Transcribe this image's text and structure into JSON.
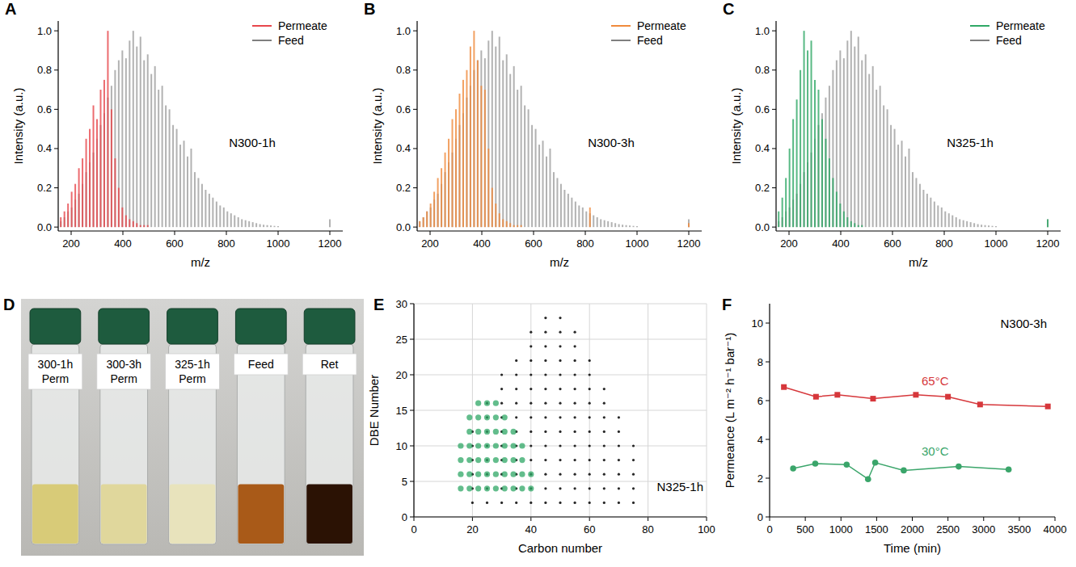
{
  "chart_data": [
    {
      "panel": "A",
      "type": "spectrum",
      "x_label": "m/z",
      "y_label": "Intensity (a.u.)",
      "annotation": "N300-1h",
      "legend": "top-right",
      "xlim": [
        150,
        1250
      ],
      "xticks": [
        200,
        400,
        600,
        800,
        1000,
        1200
      ],
      "ylim": [
        -0.02,
        1.05
      ],
      "yticks": [
        {
          "value": 0,
          "label": "0.0"
        },
        0.2,
        0.4,
        0.6,
        0.8,
        {
          "value": 1,
          "label": "1.0"
        }
      ],
      "x": [
        160,
        174,
        188,
        202,
        216,
        230,
        244,
        258,
        272,
        286,
        300,
        314,
        328,
        342,
        356,
        370,
        384,
        398,
        412,
        426,
        440,
        454,
        468,
        482,
        496,
        510,
        524,
        538,
        552,
        566,
        580,
        594,
        608,
        622,
        636,
        650,
        664,
        678,
        692,
        706,
        720,
        734,
        748,
        762,
        776,
        790,
        804,
        818,
        832,
        846,
        860,
        874,
        888,
        902,
        916,
        930,
        944,
        958,
        972,
        986,
        1000,
        1200
      ],
      "series": [
        {
          "name": "Permeate",
          "color": "#e8474c",
          "values": [
            0.05,
            0.08,
            0.12,
            0.18,
            0.22,
            0.3,
            0.35,
            0.45,
            0.5,
            0.62,
            0.55,
            0.7,
            0.75,
            1,
            0.6,
            0.35,
            0.2,
            0.1,
            0.06,
            0.04,
            0.03,
            0.02,
            0.01,
            0.01,
            0.01,
            0,
            0,
            0,
            0,
            0,
            0,
            0,
            0,
            0,
            0,
            0,
            0,
            0,
            0,
            0,
            0,
            0,
            0,
            0,
            0,
            0,
            0,
            0,
            0,
            0,
            0,
            0,
            0,
            0,
            0,
            0,
            0,
            0,
            0,
            0,
            0,
            0
          ]
        },
        {
          "name": "Feed",
          "color": "#7f7f7f",
          "values": [
            0.03,
            0.05,
            0.08,
            0.1,
            0.14,
            0.17,
            0.22,
            0.28,
            0.33,
            0.38,
            0.45,
            0.52,
            0.58,
            0.66,
            0.72,
            0.8,
            0.85,
            0.9,
            0.86,
            0.95,
            1,
            0.92,
            0.97,
            0.85,
            0.88,
            0.78,
            0.82,
            0.7,
            0.72,
            0.62,
            0.6,
            0.52,
            0.5,
            0.42,
            0.44,
            0.36,
            0.4,
            0.28,
            0.25,
            0.22,
            0.19,
            0.17,
            0.15,
            0.13,
            0.11,
            0.1,
            0.08,
            0.07,
            0.06,
            0.05,
            0.04,
            0.035,
            0.03,
            0.025,
            0.02,
            0.015,
            0.012,
            0.01,
            0.008,
            0.006,
            0.005,
            0.04
          ]
        }
      ]
    },
    {
      "panel": "B",
      "type": "spectrum",
      "x_label": "m/z",
      "y_label": "Intensity (a.u.)",
      "annotation": "N300-3h",
      "legend": "top-right",
      "xlim": [
        150,
        1250
      ],
      "xticks": [
        200,
        400,
        600,
        800,
        1000,
        1200
      ],
      "ylim": [
        -0.02,
        1.05
      ],
      "yticks": [
        {
          "value": 0,
          "label": "0.0"
        },
        0.2,
        0.4,
        0.6,
        0.8,
        {
          "value": 1,
          "label": "1.0"
        }
      ],
      "x": [
        160,
        174,
        188,
        202,
        216,
        230,
        244,
        258,
        272,
        286,
        300,
        314,
        328,
        342,
        356,
        370,
        384,
        398,
        412,
        426,
        440,
        454,
        468,
        482,
        496,
        510,
        524,
        538,
        552,
        566,
        580,
        594,
        608,
        622,
        636,
        650,
        664,
        678,
        692,
        706,
        720,
        734,
        748,
        762,
        776,
        790,
        804,
        818,
        832,
        846,
        860,
        874,
        888,
        902,
        916,
        930,
        944,
        958,
        972,
        986,
        1000,
        1200
      ],
      "series": [
        {
          "name": "Permeate",
          "color": "#f08a3c",
          "values": [
            0.03,
            0.05,
            0.08,
            0.12,
            0.18,
            0.25,
            0.3,
            0.38,
            0.45,
            0.55,
            0.6,
            0.68,
            0.75,
            0.8,
            0.92,
            1,
            0.85,
            0.72,
            0.7,
            0.4,
            0.2,
            0.12,
            0.07,
            0.04,
            0.03,
            0.02,
            0.01,
            0.01,
            0.01,
            0,
            0,
            0,
            0,
            0,
            0,
            0,
            0,
            0,
            0,
            0,
            0,
            0,
            0,
            0,
            0,
            0,
            0,
            0.1,
            0,
            0,
            0,
            0,
            0,
            0,
            0,
            0,
            0,
            0,
            0,
            0,
            0,
            0.02
          ]
        },
        {
          "name": "Feed",
          "color": "#7f7f7f",
          "values": [
            0.03,
            0.05,
            0.08,
            0.1,
            0.14,
            0.17,
            0.22,
            0.28,
            0.33,
            0.38,
            0.45,
            0.52,
            0.58,
            0.66,
            0.72,
            0.8,
            0.85,
            0.9,
            0.86,
            0.95,
            1,
            0.92,
            0.97,
            0.85,
            0.88,
            0.78,
            0.82,
            0.7,
            0.72,
            0.62,
            0.6,
            0.52,
            0.5,
            0.42,
            0.44,
            0.36,
            0.4,
            0.28,
            0.25,
            0.22,
            0.19,
            0.17,
            0.15,
            0.13,
            0.11,
            0.1,
            0.08,
            0.07,
            0.06,
            0.05,
            0.04,
            0.035,
            0.03,
            0.025,
            0.02,
            0.015,
            0.012,
            0.01,
            0.008,
            0.006,
            0.005,
            0.04
          ]
        }
      ]
    },
    {
      "panel": "C",
      "type": "spectrum",
      "x_label": "m/z",
      "y_label": "Intensity (a.u.)",
      "annotation": "N325-1h",
      "legend": "top-right",
      "xlim": [
        150,
        1250
      ],
      "xticks": [
        200,
        400,
        600,
        800,
        1000,
        1200
      ],
      "ylim": [
        -0.02,
        1.05
      ],
      "yticks": [
        {
          "value": 0,
          "label": "0.0"
        },
        0.2,
        0.4,
        0.6,
        0.8,
        {
          "value": 1,
          "label": "1.0"
        }
      ],
      "x": [
        160,
        174,
        188,
        202,
        216,
        230,
        244,
        258,
        272,
        286,
        300,
        314,
        328,
        342,
        356,
        370,
        384,
        398,
        412,
        426,
        440,
        454,
        468,
        482,
        496,
        510,
        524,
        538,
        552,
        566,
        580,
        594,
        608,
        622,
        636,
        650,
        664,
        678,
        692,
        706,
        720,
        734,
        748,
        762,
        776,
        790,
        804,
        818,
        832,
        846,
        860,
        874,
        888,
        902,
        916,
        930,
        944,
        958,
        972,
        986,
        1000,
        1200
      ],
      "series": [
        {
          "name": "Permeate",
          "color": "#2fa866",
          "values": [
            0.08,
            0.15,
            0.25,
            0.4,
            0.55,
            0.65,
            0.8,
            1,
            0.9,
            0.95,
            0.75,
            0.7,
            0.55,
            0.45,
            0.35,
            0.25,
            0.18,
            0.12,
            0.08,
            0.05,
            0.03,
            0.02,
            0.01,
            0.01,
            0,
            0,
            0,
            0,
            0,
            0,
            0,
            0,
            0,
            0,
            0,
            0,
            0,
            0,
            0,
            0,
            0,
            0,
            0,
            0,
            0,
            0,
            0,
            0,
            0,
            0,
            0,
            0,
            0,
            0,
            0,
            0,
            0,
            0,
            0,
            0,
            0,
            0.04
          ]
        },
        {
          "name": "Feed",
          "color": "#7f7f7f",
          "values": [
            0.03,
            0.05,
            0.08,
            0.1,
            0.14,
            0.17,
            0.22,
            0.28,
            0.33,
            0.38,
            0.45,
            0.52,
            0.58,
            0.66,
            0.72,
            0.8,
            0.85,
            0.9,
            0.86,
            0.95,
            1,
            0.92,
            0.97,
            0.85,
            0.88,
            0.78,
            0.82,
            0.7,
            0.72,
            0.62,
            0.6,
            0.52,
            0.5,
            0.42,
            0.44,
            0.36,
            0.4,
            0.28,
            0.25,
            0.22,
            0.19,
            0.17,
            0.15,
            0.13,
            0.11,
            0.1,
            0.08,
            0.07,
            0.06,
            0.05,
            0.04,
            0.035,
            0.03,
            0.025,
            0.02,
            0.015,
            0.012,
            0.01,
            0.008,
            0.006,
            0.005,
            0.04
          ]
        }
      ]
    },
    {
      "panel": "D",
      "type": "image",
      "labels": [
        [
          "300-1h",
          "Perm"
        ],
        [
          "300-3h",
          "Perm"
        ],
        [
          "325-1h",
          "Perm"
        ],
        [
          "Feed"
        ],
        [
          "Ret"
        ]
      ],
      "colors": [
        "#d8cb78",
        "#e0d79c",
        "#e8e3bc",
        "#a95a18",
        "#2b1204"
      ]
    },
    {
      "panel": "E",
      "type": "scatter",
      "x_label": "Carbon number",
      "y_label": "DBE Number",
      "annotation": "N325-1h",
      "grid": true,
      "xlim": [
        0,
        100
      ],
      "xticks": [
        0,
        20,
        40,
        60,
        80,
        100
      ],
      "ylim": [
        0,
        30
      ],
      "yticks": [
        0,
        5,
        10,
        15,
        20,
        25,
        30
      ],
      "series": [
        {
          "color": "#111111",
          "marker": "dot",
          "x": [
            20,
            25,
            30,
            35,
            40,
            45,
            50,
            55,
            60,
            65,
            70,
            75,
            20,
            25,
            30,
            35,
            40,
            45,
            50,
            55,
            60,
            65,
            70,
            75,
            20,
            25,
            30,
            35,
            40,
            45,
            50,
            55,
            60,
            65,
            70,
            75,
            20,
            25,
            30,
            35,
            40,
            45,
            50,
            55,
            60,
            65,
            70,
            75,
            20,
            25,
            30,
            35,
            40,
            45,
            50,
            55,
            60,
            65,
            70,
            75,
            20,
            25,
            30,
            35,
            40,
            45,
            50,
            55,
            60,
            65,
            70,
            25,
            30,
            35,
            40,
            45,
            50,
            55,
            60,
            65,
            70,
            25,
            30,
            35,
            40,
            45,
            50,
            55,
            60,
            65,
            30,
            35,
            40,
            45,
            50,
            55,
            60,
            65,
            30,
            35,
            40,
            45,
            50,
            55,
            60,
            35,
            40,
            45,
            50,
            55,
            60,
            40,
            45,
            50,
            55,
            40,
            45,
            50,
            55,
            45,
            50
          ],
          "values": [
            2,
            2,
            2,
            2,
            2,
            2,
            2,
            2,
            2,
            2,
            2,
            2,
            4,
            4,
            4,
            4,
            4,
            4,
            4,
            4,
            4,
            4,
            4,
            4,
            6,
            6,
            6,
            6,
            6,
            6,
            6,
            6,
            6,
            6,
            6,
            6,
            8,
            8,
            8,
            8,
            8,
            8,
            8,
            8,
            8,
            8,
            8,
            8,
            10,
            10,
            10,
            10,
            10,
            10,
            10,
            10,
            10,
            10,
            10,
            10,
            12,
            12,
            12,
            12,
            12,
            12,
            12,
            12,
            12,
            12,
            12,
            14,
            14,
            14,
            14,
            14,
            14,
            14,
            14,
            14,
            14,
            16,
            16,
            16,
            16,
            16,
            16,
            16,
            16,
            16,
            18,
            18,
            18,
            18,
            18,
            18,
            18,
            18,
            20,
            20,
            20,
            20,
            20,
            20,
            20,
            22,
            22,
            22,
            22,
            22,
            22,
            24,
            24,
            24,
            24,
            26,
            26,
            26,
            26,
            28,
            28
          ]
        },
        {
          "color": "#2fa866",
          "marker": "circle",
          "x": [
            16,
            19,
            22,
            25,
            28,
            31,
            34,
            37,
            40,
            16,
            19,
            22,
            25,
            28,
            31,
            34,
            37,
            40,
            16,
            19,
            22,
            25,
            28,
            31,
            34,
            37,
            16,
            19,
            22,
            25,
            28,
            31,
            34,
            37,
            19,
            22,
            25,
            28,
            31,
            34,
            19,
            22,
            25,
            28,
            31,
            22,
            25,
            28
          ],
          "values": [
            4,
            4,
            4,
            4,
            4,
            4,
            4,
            4,
            4,
            6,
            6,
            6,
            6,
            6,
            6,
            6,
            6,
            6,
            8,
            8,
            8,
            8,
            8,
            8,
            8,
            8,
            10,
            10,
            10,
            10,
            10,
            10,
            10,
            10,
            12,
            12,
            12,
            12,
            12,
            12,
            14,
            14,
            14,
            14,
            14,
            16,
            16,
            16
          ]
        }
      ]
    },
    {
      "panel": "F",
      "type": "line",
      "x_label": "Time (min)",
      "y_label": "Permeance (L m⁻² h⁻¹ bar⁻¹)",
      "annotation": "N300-3h",
      "xlim": [
        0,
        4000
      ],
      "xticks": [
        0,
        500,
        1000,
        1500,
        2000,
        2500,
        3000,
        3500,
        4000
      ],
      "ylim": [
        0,
        11
      ],
      "yticks": [
        0,
        2,
        4,
        6,
        8,
        10
      ],
      "series": [
        {
          "name": "65°C",
          "color": "#d6373b",
          "marker": "square",
          "x": [
            200,
            650,
            950,
            1450,
            2050,
            2500,
            2950,
            3900
          ],
          "values": [
            6.7,
            6.2,
            6.3,
            6.1,
            6.3,
            6.2,
            5.8,
            5.7
          ]
        },
        {
          "name": "30°C",
          "color": "#3aa56a",
          "marker": "circle",
          "x": [
            330,
            640,
            1080,
            1380,
            1480,
            1880,
            2650,
            3350
          ],
          "values": [
            2.5,
            2.75,
            2.7,
            1.95,
            2.8,
            2.4,
            2.6,
            2.45
          ]
        }
      ]
    }
  ]
}
